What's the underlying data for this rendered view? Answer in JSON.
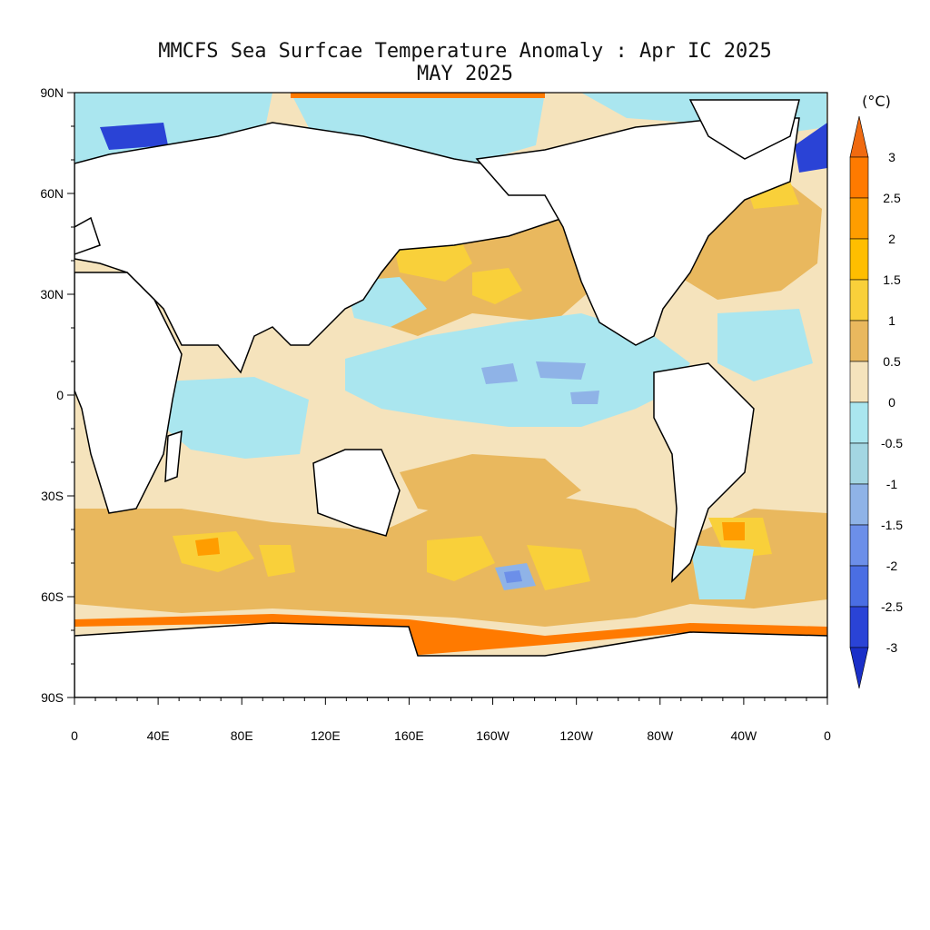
{
  "title": {
    "line1": "MMCFS Sea Surfcae Temperature Anomaly : Apr IC 2025",
    "line2": "MAY 2025"
  },
  "colorbar": {
    "unit": "(°C)",
    "labels": [
      "3",
      "2.5",
      "2",
      "1.5",
      "1",
      "0.5",
      "0",
      "-0.5",
      "-1",
      "-1.5",
      "-2",
      "-2.5",
      "-3"
    ],
    "colors": [
      "#ff7a00",
      "#ff9d00",
      "#ffbe00",
      "#f9d03a",
      "#e9b85e",
      "#f5e3bc",
      "#aae6ef",
      "#a3d6e2",
      "#8fb3e7",
      "#6c8fe9",
      "#4a6ee3",
      "#2a43d6"
    ],
    "top_arrow_color": "#f06a10",
    "bottom_arrow_color": "#1a2fc8"
  },
  "axes": {
    "x_ticks": [
      "0",
      "40E",
      "80E",
      "120E",
      "160E",
      "160W",
      "120W",
      "80W",
      "40W",
      "0"
    ],
    "y_ticks": [
      "90N",
      "60N",
      "30N",
      "0",
      "30S",
      "60S",
      "90S"
    ]
  },
  "map_colors": {
    "ocean_zero_positive": "#f5e3bc",
    "ocean_zero_negative": "#aae6ef",
    "warm_mid": "#e9b85e",
    "warm_high": "#f9d03a",
    "warm_higher": "#ffbe00",
    "warm_orange": "#ff9d00",
    "warm_edge": "#ff7a00",
    "cool_mid": "#8fb3e7",
    "cool_deep": "#6c8fe9",
    "cool_edge": "#2a43d6",
    "land": "#ffffff",
    "coast": "#000000"
  }
}
